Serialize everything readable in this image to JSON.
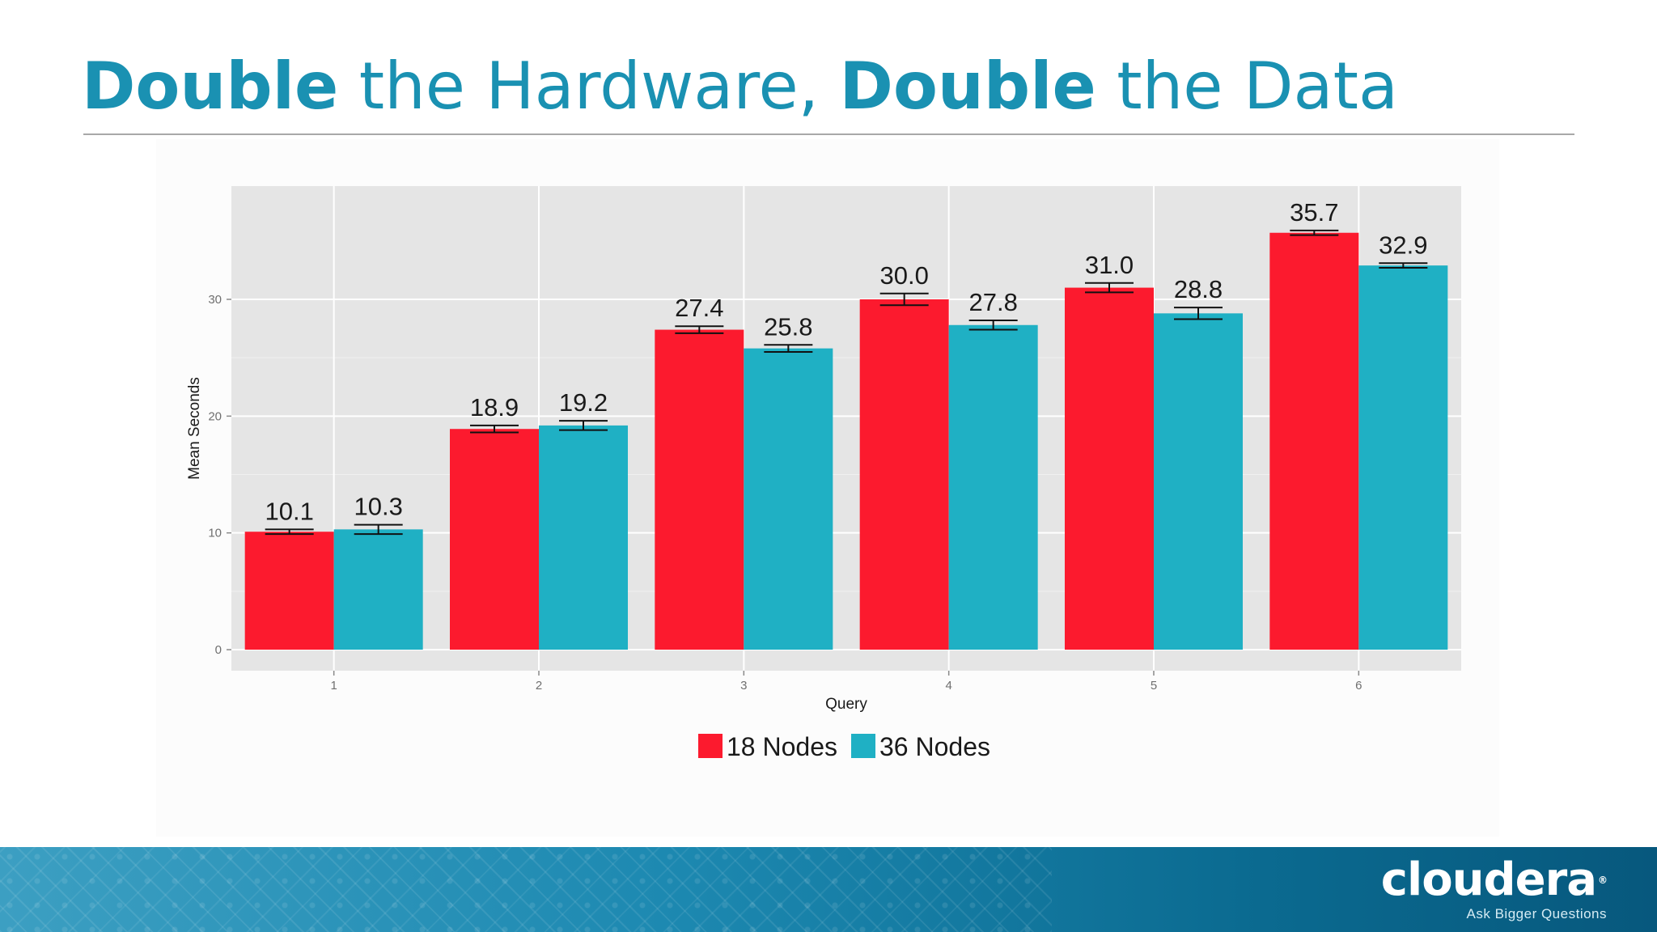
{
  "slide": {
    "title_part1": "Double",
    "title_part2": " the Hardware, ",
    "title_part3": "Double",
    "title_part4": " the Data"
  },
  "branding": {
    "logo": "cloudera",
    "logo_mark": "®",
    "tagline": "Ask Bigger Questions"
  },
  "colors": {
    "title": "#1a91b2",
    "series_18": "#fc1a2e",
    "series_36": "#1fb0c4",
    "panel": "#e5e5e5"
  },
  "chart_data": {
    "type": "bar",
    "title": "",
    "xlabel": "Query",
    "ylabel": "Mean Seconds",
    "categories": [
      "1",
      "2",
      "3",
      "4",
      "5",
      "6"
    ],
    "yticks": [
      0,
      10,
      20,
      30
    ],
    "ylim": [
      -1.8,
      39.7
    ],
    "grid": true,
    "legend_position": "bottom",
    "series": [
      {
        "name": "18 Nodes",
        "color": "#fc1a2e",
        "values": [
          10.1,
          18.9,
          27.4,
          30.0,
          31.0,
          35.7
        ],
        "labels": [
          "10.1",
          "18.9",
          "27.4",
          "30.0",
          "31.0",
          "35.7"
        ],
        "error": [
          0.2,
          0.3,
          0.3,
          0.5,
          0.4,
          0.2
        ]
      },
      {
        "name": "36 Nodes",
        "color": "#1fb0c4",
        "values": [
          10.3,
          19.2,
          25.8,
          27.8,
          28.8,
          32.9
        ],
        "labels": [
          "10.3",
          "19.2",
          "25.8",
          "27.8",
          "28.8",
          "32.9"
        ],
        "error": [
          0.4,
          0.4,
          0.3,
          0.4,
          0.5,
          0.2
        ]
      }
    ]
  }
}
